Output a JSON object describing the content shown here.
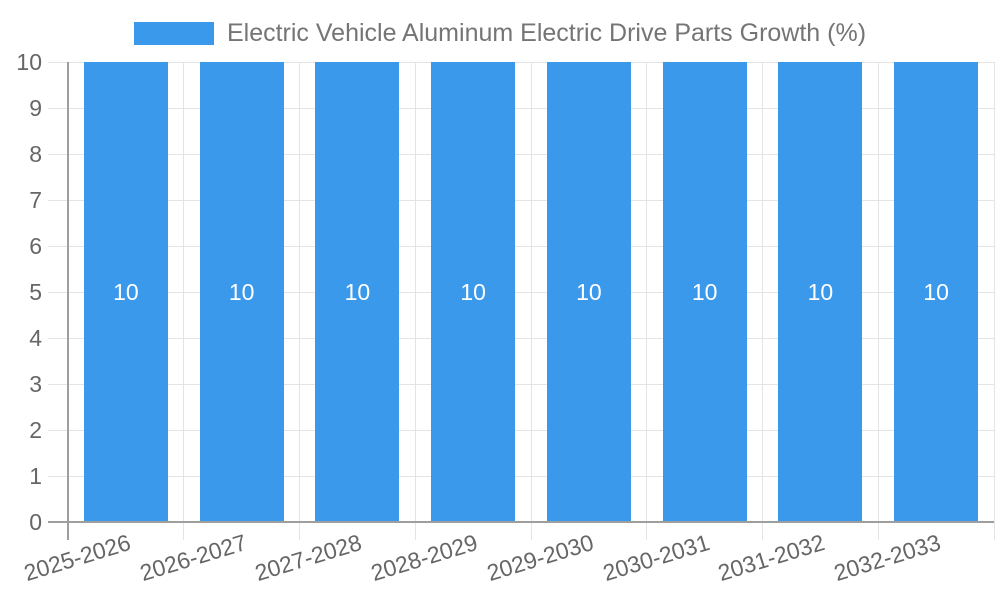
{
  "legend": {
    "label": "Electric Vehicle Aluminum Electric Drive Parts Growth (%)"
  },
  "chart_data": {
    "type": "bar",
    "title": "Electric Vehicle Aluminum Electric Drive Parts Growth (%)",
    "categories": [
      "2025-2026",
      "2026-2027",
      "2027-2028",
      "2028-2029",
      "2029-2030",
      "2030-2031",
      "2031-2032",
      "2032-2033"
    ],
    "values": [
      10,
      10,
      10,
      10,
      10,
      10,
      10,
      10
    ],
    "series": [
      {
        "name": "Electric Vehicle Aluminum Electric Drive Parts Growth (%)",
        "values": [
          10,
          10,
          10,
          10,
          10,
          10,
          10,
          10
        ]
      }
    ],
    "xlabel": "",
    "ylabel": "",
    "ylim": [
      0,
      10
    ],
    "yticks": [
      0,
      1,
      2,
      3,
      4,
      5,
      6,
      7,
      8,
      9,
      10
    ],
    "grid": true,
    "legend_position": "top-center",
    "data_labels_shown": true
  },
  "colors": {
    "bar": "#3B99EC",
    "bar_label": "#FFFFFF",
    "gridline": "#E4E4E4",
    "axis_line": "#9E9E9E",
    "tick_label": "#666666",
    "legend_text": "#757575",
    "background": "#FFFFFF"
  }
}
